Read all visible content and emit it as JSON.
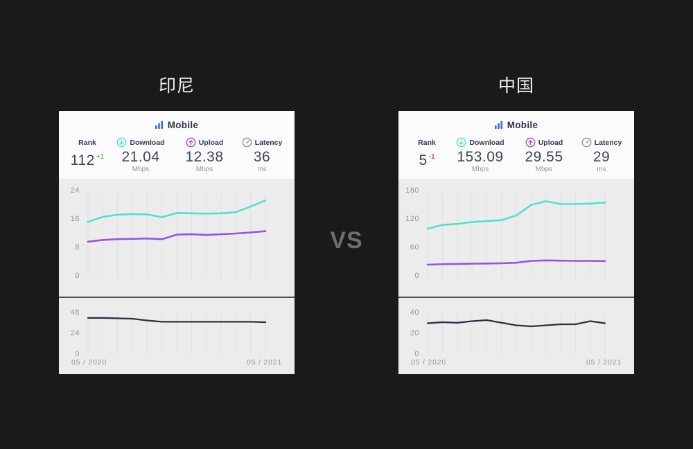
{
  "page": {
    "vs_label": "VS",
    "background": "#1a1a1a"
  },
  "colors": {
    "download": "#4de3cb",
    "upload": "#9a52e0",
    "latency_line": "#2b3040",
    "rank_up": "#6cbf3f",
    "rank_down": "#ee4465",
    "accent_blue": "#2e6df6",
    "grid": "#e0e0e3",
    "chart_bg": "#ececec",
    "header_bg": "#fbfbfb"
  },
  "cards": [
    {
      "title": "印尼",
      "network_type": "Mobile",
      "stats": {
        "rank": {
          "label": "Rank",
          "value": "112",
          "delta": "+1"
        },
        "download": {
          "label": "Download",
          "value": "21.04",
          "unit": "Mbps"
        },
        "upload": {
          "label": "Upload",
          "value": "12.38",
          "unit": "Mbps"
        },
        "latency": {
          "label": "Latency",
          "value": "36",
          "unit": "ms"
        }
      },
      "x_axis": {
        "start": "05 / 2020",
        "end": "05 / 2021"
      }
    },
    {
      "title": "中国",
      "network_type": "Mobile",
      "stats": {
        "rank": {
          "label": "Rank",
          "value": "5",
          "delta": "-1"
        },
        "download": {
          "label": "Download",
          "value": "153.09",
          "unit": "Mbps"
        },
        "upload": {
          "label": "Upload",
          "value": "29.55",
          "unit": "Mbps"
        },
        "latency": {
          "label": "Latency",
          "value": "29",
          "unit": "ms"
        }
      },
      "x_axis": {
        "start": "05 / 2020",
        "end": "05 / 2021"
      }
    }
  ],
  "chart_data": [
    {
      "id": "indonesia-speed",
      "type": "line",
      "title": "印尼 Mobile speeds (Mbps), monthly 05/2020 – 05/2021",
      "ylim": [
        0,
        24
      ],
      "yticks": [
        24,
        16,
        8,
        0
      ],
      "x_points": 13,
      "x_start_label": "05 / 2020",
      "x_end_label": "05 / 2021",
      "grid": true,
      "legend": "none",
      "series": [
        {
          "name": "Download",
          "color": "#4de3cb",
          "values": [
            15.0,
            16.4,
            17.0,
            17.2,
            17.1,
            16.3,
            17.5,
            17.4,
            17.3,
            17.4,
            17.7,
            19.3,
            21.04
          ]
        },
        {
          "name": "Upload",
          "color": "#9a52e0",
          "values": [
            9.4,
            9.9,
            10.1,
            10.2,
            10.3,
            10.1,
            11.4,
            11.5,
            11.3,
            11.5,
            11.7,
            12.0,
            12.38
          ]
        }
      ]
    },
    {
      "id": "indonesia-latency",
      "type": "line",
      "title": "印尼 Mobile latency (ms), monthly 05/2020 – 05/2021",
      "ylim": [
        0,
        48
      ],
      "yticks": [
        48,
        24,
        0
      ],
      "x_points": 13,
      "x_start_label": "05 / 2020",
      "x_end_label": "05 / 2021",
      "grid": true,
      "legend": "none",
      "series": [
        {
          "name": "Latency",
          "color": "#2b3040",
          "values": [
            41,
            41,
            40.5,
            40,
            38,
            36.5,
            36.5,
            36.5,
            36.5,
            36.5,
            36.5,
            36.5,
            36
          ]
        }
      ]
    },
    {
      "id": "china-speed",
      "type": "line",
      "title": "中国 Mobile speeds (Mbps), monthly 05/2020 – 05/2021",
      "ylim": [
        0,
        180
      ],
      "yticks": [
        180,
        120,
        60,
        0
      ],
      "x_points": 13,
      "x_start_label": "05 / 2020",
      "x_end_label": "05 / 2021",
      "grid": true,
      "legend": "none",
      "series": [
        {
          "name": "Download",
          "color": "#4de3cb",
          "values": [
            98,
            106,
            108,
            112,
            114,
            116,
            126,
            148,
            156,
            150,
            150,
            151,
            153.09
          ]
        },
        {
          "name": "Upload",
          "color": "#9a52e0",
          "values": [
            22,
            23,
            23.5,
            24,
            24.5,
            25,
            26,
            30,
            31,
            30.5,
            30,
            30,
            29.55
          ]
        }
      ]
    },
    {
      "id": "china-latency",
      "type": "line",
      "title": "中国 Mobile latency (ms), monthly 05/2020 – 05/2021",
      "ylim": [
        0,
        40
      ],
      "yticks": [
        40,
        20,
        0
      ],
      "x_points": 13,
      "x_start_label": "05 / 2020",
      "x_end_label": "05 / 2021",
      "grid": true,
      "legend": "none",
      "series": [
        {
          "name": "Latency",
          "color": "#2b3040",
          "values": [
            29,
            30,
            29.5,
            31,
            32,
            29.5,
            27,
            26,
            27,
            28,
            28,
            31,
            29
          ]
        }
      ]
    }
  ]
}
